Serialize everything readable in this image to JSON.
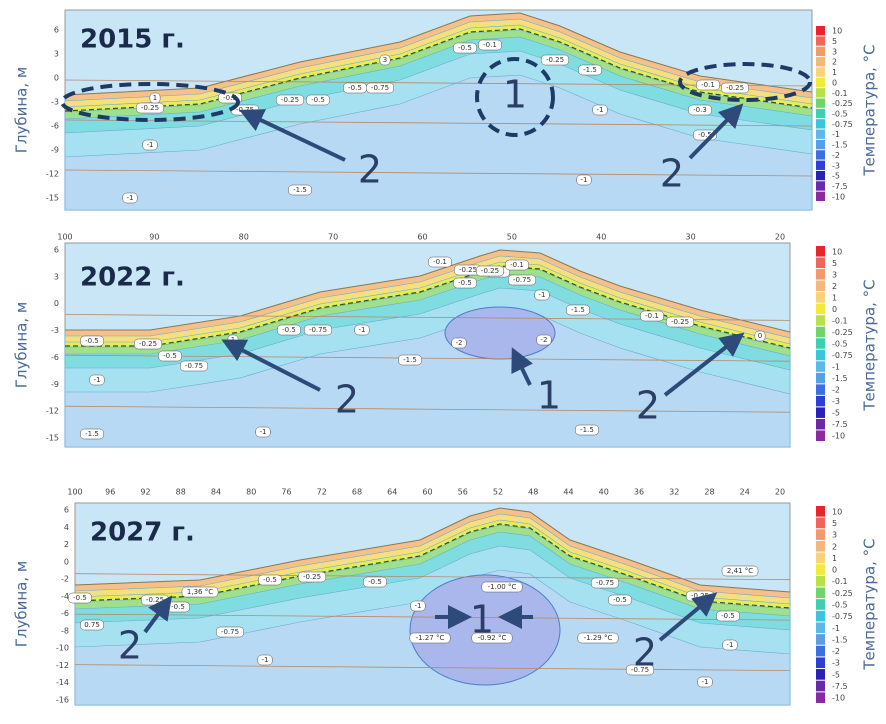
{
  "panels": [
    {
      "year": "2015 г.",
      "ylabel": "Глубина, м",
      "yticks": [
        6,
        3,
        0,
        -3,
        -6,
        -9,
        -12,
        -15
      ],
      "legend_title": "Температура, °C",
      "contour_labels": [
        "-0.25",
        "1",
        "3",
        "-0.5",
        "-0.25",
        "-0.5",
        "-0.75",
        "-1",
        "-1.5",
        "-1",
        "-1",
        "-0.1",
        "-0.25",
        "-0.5",
        "-0.3",
        "-0.5",
        "-0.75",
        "-0.1",
        "-0.25",
        "-1.5",
        "-1",
        "-0.5"
      ],
      "markers": [
        "1",
        "2",
        "2"
      ]
    },
    {
      "year": "2022 г.",
      "ylabel": "Глубина, м",
      "yticks": [
        6,
        3,
        0,
        -3,
        -6,
        -9,
        -12,
        -15
      ],
      "xticks": [
        100,
        90,
        80,
        70,
        60,
        50,
        40,
        30,
        20
      ],
      "legend_title": "Температура, °C",
      "contour_labels": [
        "-0.5",
        "-0.25",
        "-0.5",
        "1",
        "-0.1",
        "-0.25",
        "-0.5",
        "-0.75",
        "-0.5",
        "-0.25",
        "-0.1",
        "-0.75",
        "-1",
        "-1",
        "-1.5",
        "-1.5",
        "-2",
        "-2",
        "-1.5",
        "-0.75",
        "-0.5",
        "-0.1",
        "-0.25",
        "0",
        "-1",
        "-1.5",
        "-1"
      ],
      "markers": [
        "2",
        "1",
        "2"
      ]
    },
    {
      "year": "2027 г.",
      "ylabel": "Глубина, м",
      "yticks": [
        6,
        4,
        2,
        0,
        -2,
        -4,
        -6,
        -8,
        -10,
        -12,
        -14,
        -16
      ],
      "xticks": [
        100,
        96,
        92,
        88,
        84,
        80,
        76,
        72,
        68,
        64,
        60,
        56,
        52,
        48,
        44,
        40,
        36,
        32,
        28,
        24,
        20
      ],
      "legend_title": "Температура, °C",
      "contour_labels": [
        "1,36 °C",
        "2,41 °C",
        "-1.27 °C",
        "-1.00 °C",
        "-0.92 °C",
        "-1.29 °C",
        "-0.5",
        "-0.25",
        "0.75",
        "-0.5",
        "-0.75",
        "-1",
        "-0.5",
        "-0.25",
        "-0.5",
        "-1",
        "-0.75",
        "-0.5",
        "-0.25",
        "-0.5",
        "-1",
        "-0.75",
        "-1"
      ],
      "markers": [
        "2",
        "1",
        "2"
      ]
    }
  ],
  "legend_levels": [
    10,
    5,
    3,
    2,
    1,
    0,
    -0.1,
    -0.25,
    -0.5,
    -0.75,
    -1,
    -1.5,
    -2,
    -3,
    -5,
    -7.5,
    -10
  ],
  "legend_colors": [
    "#e8252a",
    "#f0645a",
    "#f39a6a",
    "#f6b77a",
    "#f9d27a",
    "#f2ea3a",
    "#b8e04a",
    "#6fd46a",
    "#3ccfb0",
    "#38c6dd",
    "#5ab8ec",
    "#56a0e8",
    "#3c6fdf",
    "#2d3fd6",
    "#2a22b8",
    "#6a2aa8",
    "#8a2aa0"
  ]
}
